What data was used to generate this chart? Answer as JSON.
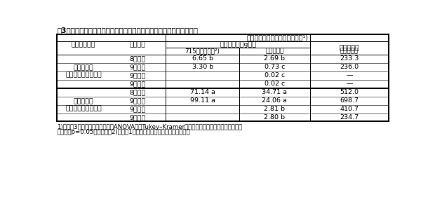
{
  "title": "表3　播種時期が異なるエンバク夏播き栽培における線虫産卵量の比較",
  "header1": "エンバク根における線虫産卵量¹)",
  "header2a": "着生卵嚢数／g生根",
  "header2b": "卵数／卵嚢",
  "header3a": "715日度経過時²)",
  "header3b": "栽培終了時",
  "header3c": "栽培終了時",
  "col_variety": "エンバク品種",
  "col_sowing": "播種時期",
  "footnote1": "1)数値は3反復の平均値を示す。ANOVA後にTukey–Kramer法で検定し、各列内の同一符号間に",
  "footnote2": "有意差（p=0.05）なし。　2)線虫が1世代を確実に経過する時期の調査。",
  "varieties": [
    "たちいぶき\n（線虫増殖性・低）",
    "はえいぶき\n（線虫増殖性・高）"
  ],
  "rows": [
    {
      "variety_idx": 0,
      "sowing": "8月下旬",
      "val1": "6.65 b",
      "val2": "2.69 b",
      "val3": "233.3"
    },
    {
      "variety_idx": 0,
      "sowing": "9月上旬",
      "val1": "3.30 b",
      "val2": "0.73 c",
      "val3": "236.0"
    },
    {
      "variety_idx": 0,
      "sowing": "9月中旬",
      "val1": "",
      "val2": "0.02 c",
      "val3": "—"
    },
    {
      "variety_idx": 0,
      "sowing": "9月下旬",
      "val1": "",
      "val2": "0.02 c",
      "val3": "—"
    },
    {
      "variety_idx": 1,
      "sowing": "8月下旬",
      "val1": "71.14 a",
      "val2": "34.71 a",
      "val3": "512.0"
    },
    {
      "variety_idx": 1,
      "sowing": "9月上旬",
      "val1": "99.11 a",
      "val2": "24.06 a",
      "val3": "698.7"
    },
    {
      "variety_idx": 1,
      "sowing": "9月中旬",
      "val1": "",
      "val2": "2.81 b",
      "val3": "410.7"
    },
    {
      "variety_idx": 1,
      "sowing": "9月下旬",
      "val1": "",
      "val2": "2.80 b",
      "val3": "234.7"
    }
  ],
  "bg_color": "#ffffff",
  "text_color": "#000000"
}
